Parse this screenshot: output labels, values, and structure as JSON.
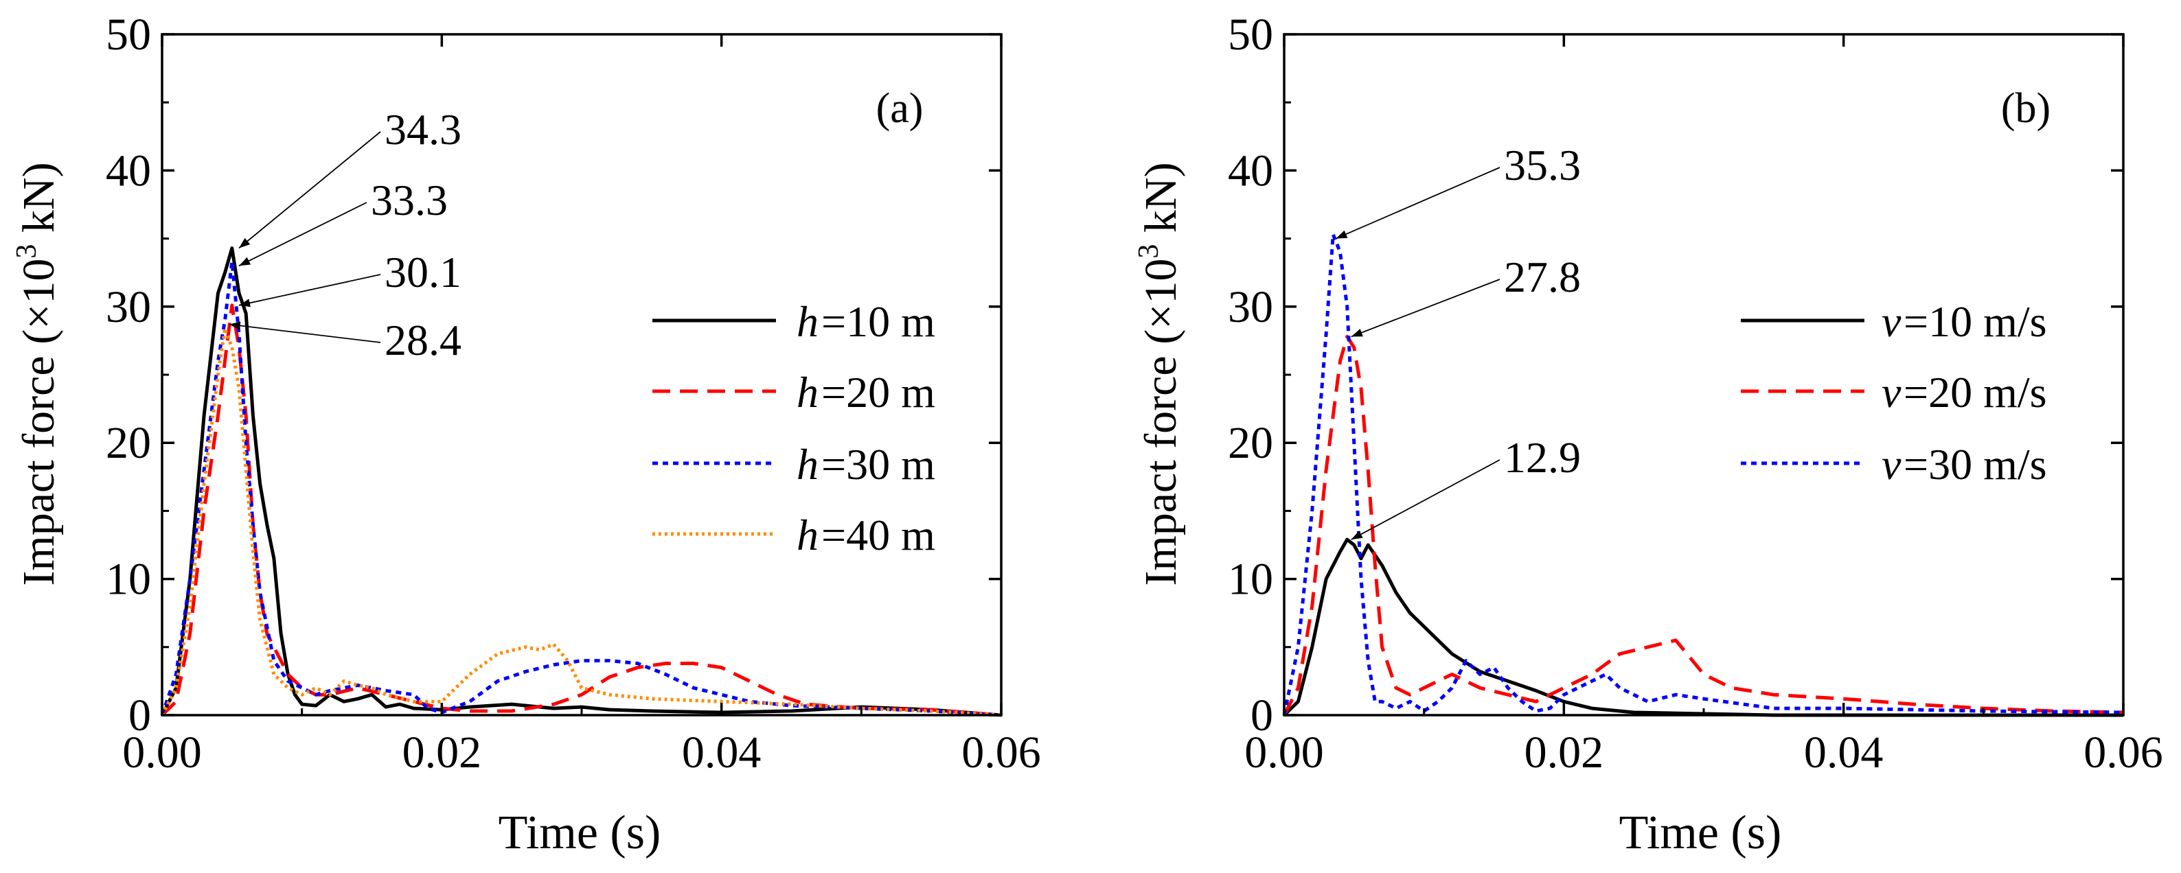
{
  "chart_data": [
    {
      "type": "line",
      "panel_label": "(a)",
      "xlabel": "Time (s)",
      "ylabel_pre": "Impact force (×10",
      "ylabel_sup": "3",
      "ylabel_post": " kN)",
      "xlim": [
        0,
        0.06
      ],
      "ylim": [
        0,
        50
      ],
      "xticks": [
        0,
        0.02,
        0.04,
        0.06
      ],
      "xtick_labels": [
        "0.00",
        "0.02",
        "0.04",
        "0.06"
      ],
      "yticks": [
        0,
        10,
        20,
        30,
        40,
        50
      ],
      "ytick_labels": [
        "0",
        "10",
        "20",
        "30",
        "40",
        "50"
      ],
      "legend_position": "center-right",
      "series": [
        {
          "var": "h",
          "rest": "=10 m",
          "color": "#000000",
          "dash": "none",
          "x": [
            0,
            0.001,
            0.002,
            0.003,
            0.004,
            0.0045,
            0.005,
            0.0055,
            0.006,
            0.0065,
            0.007,
            0.0075,
            0.008,
            0.0085,
            0.009,
            0.0095,
            0.01,
            0.011,
            0.012,
            0.013,
            0.014,
            0.015,
            0.016,
            0.017,
            0.018,
            0.02,
            0.022,
            0.025,
            0.028,
            0.03,
            0.032,
            0.035,
            0.04,
            0.045,
            0.05,
            0.055,
            0.06
          ],
          "y": [
            0,
            2,
            10,
            22,
            31,
            32.5,
            34.3,
            31,
            29.5,
            22,
            17,
            14,
            11.5,
            6,
            3,
            1.5,
            0.8,
            0.7,
            1.5,
            1,
            1.2,
            1.5,
            0.6,
            0.8,
            0.5,
            0.4,
            0.6,
            0.8,
            0.5,
            0.6,
            0.4,
            0.3,
            0.2,
            0.3,
            0.6,
            0.4,
            0
          ]
        },
        {
          "var": "h",
          "rest": "=20 m",
          "color": "#ff0000",
          "dash": "26,14",
          "x": [
            0,
            0.001,
            0.002,
            0.003,
            0.004,
            0.005,
            0.0055,
            0.006,
            0.0065,
            0.007,
            0.0075,
            0.008,
            0.009,
            0.01,
            0.011,
            0.012,
            0.014,
            0.016,
            0.018,
            0.02,
            0.022,
            0.025,
            0.028,
            0.03,
            0.032,
            0.034,
            0.036,
            0.038,
            0.04,
            0.042,
            0.044,
            0.046,
            0.05,
            0.055,
            0.06
          ],
          "y": [
            0,
            1,
            6,
            15,
            22,
            30.1,
            27,
            22,
            14,
            9,
            6,
            5,
            3,
            2,
            1.5,
            1.5,
            2,
            1.5,
            1,
            0.5,
            0.3,
            0.3,
            0.8,
            1.5,
            2.8,
            3.5,
            3.8,
            3.8,
            3.5,
            2.5,
            1.5,
            0.8,
            0.5,
            0.4,
            0
          ]
        },
        {
          "var": "h",
          "rest": "=30 m",
          "color": "#0000ff",
          "dash": "8,7",
          "x": [
            0,
            0.001,
            0.002,
            0.003,
            0.004,
            0.0045,
            0.005,
            0.0055,
            0.006,
            0.0065,
            0.007,
            0.008,
            0.009,
            0.01,
            0.011,
            0.012,
            0.014,
            0.016,
            0.018,
            0.019,
            0.02,
            0.022,
            0.024,
            0.026,
            0.028,
            0.03,
            0.032,
            0.034,
            0.036,
            0.038,
            0.04,
            0.042,
            0.045,
            0.05,
            0.055,
            0.06
          ],
          "y": [
            0,
            3,
            10,
            18,
            26,
            29,
            33.3,
            28,
            20,
            14,
            9,
            4,
            2.5,
            2,
            1.5,
            1.8,
            2.2,
            1.8,
            1.5,
            0.5,
            0.2,
            1,
            2.5,
            3.2,
            3.7,
            4,
            4,
            3.8,
            3,
            2,
            1.5,
            1,
            0.7,
            0.5,
            0.3,
            0
          ]
        },
        {
          "var": "h",
          "rest": "=40 m",
          "color": "#ff8c00",
          "dash": "4,5",
          "x": [
            0,
            0.001,
            0.002,
            0.003,
            0.004,
            0.0045,
            0.005,
            0.0055,
            0.006,
            0.0065,
            0.007,
            0.008,
            0.009,
            0.01,
            0.011,
            0.012,
            0.013,
            0.014,
            0.015,
            0.016,
            0.018,
            0.02,
            0.022,
            0.024,
            0.026,
            0.027,
            0.028,
            0.029,
            0.03,
            0.032,
            0.035,
            0.04,
            0.045,
            0.05,
            0.055,
            0.06
          ],
          "y": [
            0,
            2,
            8,
            17,
            25,
            28.4,
            27,
            24,
            18,
            12,
            7,
            3,
            2,
            1.5,
            2,
            1.5,
            2.5,
            2.2,
            2,
            1.5,
            1,
            1,
            3,
            4.5,
            5,
            4.8,
            5.2,
            4,
            2,
            1.5,
            1.2,
            1,
            0.8,
            0.5,
            0.3,
            0
          ]
        }
      ],
      "annotations": [
        {
          "text": "34.3",
          "x": 0.0055,
          "y": 34.3
        },
        {
          "text": "33.3",
          "x": 0.0055,
          "y": 33.0
        },
        {
          "text": "30.1",
          "x": 0.0055,
          "y": 30.1
        },
        {
          "text": "28.4",
          "x": 0.0048,
          "y": 28.7
        }
      ]
    },
    {
      "type": "line",
      "panel_label": "(b)",
      "xlabel": "Time (s)",
      "ylabel_pre": "Impact force (×10",
      "ylabel_sup": "3",
      "ylabel_post": " kN)",
      "xlim": [
        0,
        0.06
      ],
      "ylim": [
        0,
        50
      ],
      "xticks": [
        0,
        0.02,
        0.04,
        0.06
      ],
      "xtick_labels": [
        "0.00",
        "0.02",
        "0.04",
        "0.06"
      ],
      "yticks": [
        0,
        10,
        20,
        30,
        40,
        50
      ],
      "ytick_labels": [
        "0",
        "10",
        "20",
        "30",
        "40",
        "50"
      ],
      "legend_position": "center-right",
      "series": [
        {
          "var": "v",
          "rest": "=10 m/s",
          "color": "#000000",
          "dash": "none",
          "x": [
            0,
            0.001,
            0.002,
            0.003,
            0.004,
            0.0045,
            0.005,
            0.0055,
            0.006,
            0.007,
            0.008,
            0.009,
            0.01,
            0.012,
            0.014,
            0.016,
            0.018,
            0.02,
            0.022,
            0.025,
            0.03,
            0.035,
            0.04,
            0.05,
            0.06
          ],
          "y": [
            0,
            1,
            5,
            10,
            12,
            12.9,
            12.5,
            11.5,
            12.5,
            11,
            9,
            7.5,
            6.5,
            4.5,
            3.2,
            2.5,
            1.8,
            1,
            0.5,
            0.2,
            0.1,
            0,
            0,
            0,
            0
          ]
        },
        {
          "var": "v",
          "rest": "=20 m/s",
          "color": "#ff0000",
          "dash": "26,14",
          "x": [
            0,
            0.001,
            0.002,
            0.003,
            0.004,
            0.0045,
            0.005,
            0.0055,
            0.006,
            0.0065,
            0.007,
            0.008,
            0.009,
            0.01,
            0.012,
            0.014,
            0.016,
            0.018,
            0.02,
            0.022,
            0.024,
            0.026,
            0.028,
            0.03,
            0.032,
            0.035,
            0.04,
            0.045,
            0.05,
            0.055,
            0.06
          ],
          "y": [
            0,
            2,
            8,
            18,
            26,
            27.8,
            27,
            24,
            18,
            11,
            5,
            2,
            1.5,
            2,
            3,
            2,
            1.5,
            1,
            2,
            3,
            4.5,
            5,
            5.5,
            3,
            2,
            1.5,
            1.2,
            0.8,
            0.5,
            0.3,
            0.2
          ]
        },
        {
          "var": "v",
          "rest": "=30 m/s",
          "color": "#0000ff",
          "dash": "8,7",
          "x": [
            0,
            0.001,
            0.002,
            0.003,
            0.0035,
            0.004,
            0.0045,
            0.005,
            0.0055,
            0.006,
            0.0065,
            0.007,
            0.008,
            0.009,
            0.01,
            0.011,
            0.012,
            0.013,
            0.014,
            0.015,
            0.016,
            0.017,
            0.018,
            0.019,
            0.02,
            0.022,
            0.023,
            0.024,
            0.026,
            0.028,
            0.03,
            0.035,
            0.04,
            0.05,
            0.06
          ],
          "y": [
            0,
            5,
            15,
            28,
            35.3,
            34,
            30,
            20,
            10,
            4,
            1,
            1,
            0.5,
            1,
            0.3,
            1,
            2,
            4,
            3,
            3.5,
            2,
            1,
            0.3,
            0.5,
            1.5,
            2.5,
            3,
            2,
            1,
            1.5,
            1.2,
            0.5,
            0.5,
            0.3,
            0.2
          ]
        }
      ],
      "annotations": [
        {
          "text": "35.3",
          "x": 0.0037,
          "y": 35.0
        },
        {
          "text": "27.8",
          "x": 0.0048,
          "y": 27.8
        },
        {
          "text": "12.9",
          "x": 0.0048,
          "y": 12.9
        }
      ]
    }
  ]
}
